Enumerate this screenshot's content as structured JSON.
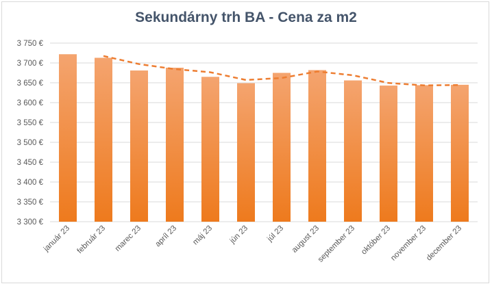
{
  "chart_data": {
    "type": "bar",
    "title": "Sekundárny trh BA - Cena za m2",
    "categories": [
      "január 23",
      "február 23",
      "marec 23",
      "apríl 23",
      "máj 23",
      "jún 23",
      "júl 23",
      "august 23",
      "september 23",
      "október 23",
      "november 23",
      "december 23"
    ],
    "series": [
      {
        "values": [
          3722,
          3713,
          3681,
          3688,
          3665,
          3649,
          3675,
          3682,
          3656,
          3643,
          3644,
          3645
        ]
      }
    ],
    "trendline": {
      "type": "moving-average",
      "period": 2,
      "style": "dashed",
      "values": [
        null,
        3717.5,
        3697,
        3684.5,
        3676.5,
        3657,
        3662,
        3678.5,
        3669,
        3649.5,
        3643.5,
        3644.5
      ]
    },
    "ylim": [
      3300,
      3750
    ],
    "yticks": [
      3300,
      3350,
      3400,
      3450,
      3500,
      3550,
      3600,
      3650,
      3700,
      3750
    ],
    "ytick_labels": [
      "3 300 €",
      "3 350 €",
      "3 400 €",
      "3 450 €",
      "3 500 €",
      "3 550 €",
      "3 600 €",
      "3 650 €",
      "3 700 €",
      "3 750 €"
    ],
    "xlabel": "",
    "ylabel": "",
    "grid": true,
    "legend": "none",
    "colors": {
      "bar_top": "#f4a46f",
      "bar_bottom": "#ee7a1d",
      "trendline": "#ed7d31",
      "grid": "#d9d9d9",
      "text": "#595959",
      "title": "#44546a"
    }
  }
}
